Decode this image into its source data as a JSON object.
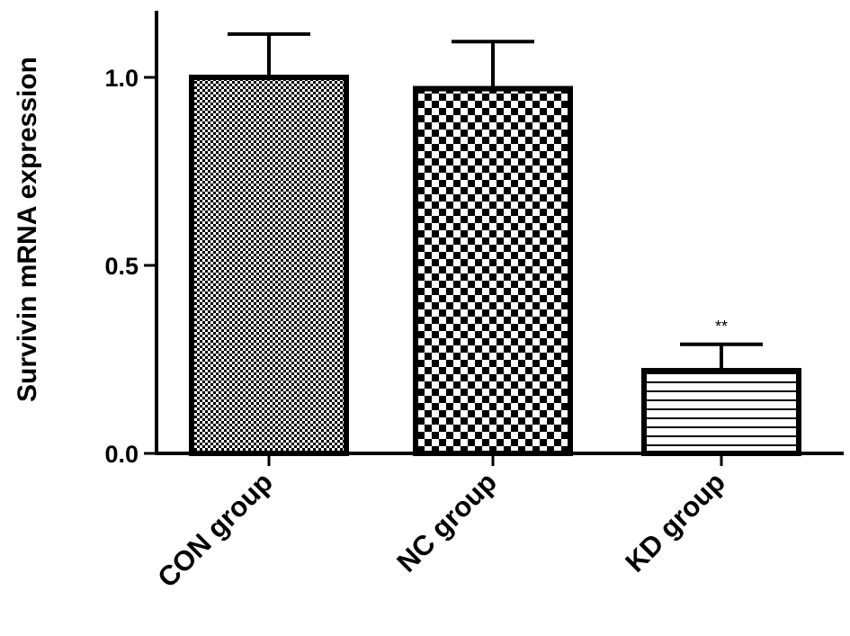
{
  "chart_data": {
    "type": "bar",
    "categories": [
      "CON group",
      "NC group",
      "KD group"
    ],
    "values": [
      1.0,
      0.97,
      0.22
    ],
    "errors": [
      0.115,
      0.125,
      0.07
    ],
    "annotations": [
      "",
      "",
      "**"
    ],
    "patterns": [
      "fine-checker",
      "coarse-checker",
      "horizontal-lines"
    ],
    "title": "",
    "xlabel": "",
    "ylabel": "Survivin mRNA expression",
    "ylim": [
      0,
      1.2
    ],
    "yticks": [
      0.0,
      0.5,
      1.0
    ],
    "ytick_labels": [
      "0.0",
      "0.5",
      "1.0"
    ],
    "grid": false,
    "bar_color": "#000000",
    "background": "#ffffff"
  }
}
